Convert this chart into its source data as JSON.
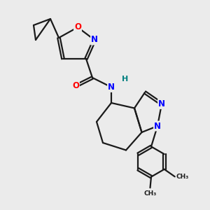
{
  "bg_color": "#ebebeb",
  "atom_color_N": "#0000ff",
  "atom_color_O": "#ff0000",
  "atom_color_H": "#008080",
  "line_color": "#1a1a1a",
  "line_width": 1.6,
  "font_size_atom": 8.5,
  "fig_width": 3.0,
  "fig_height": 3.0,
  "xlim": [
    0,
    10
  ],
  "ylim": [
    0,
    10
  ]
}
